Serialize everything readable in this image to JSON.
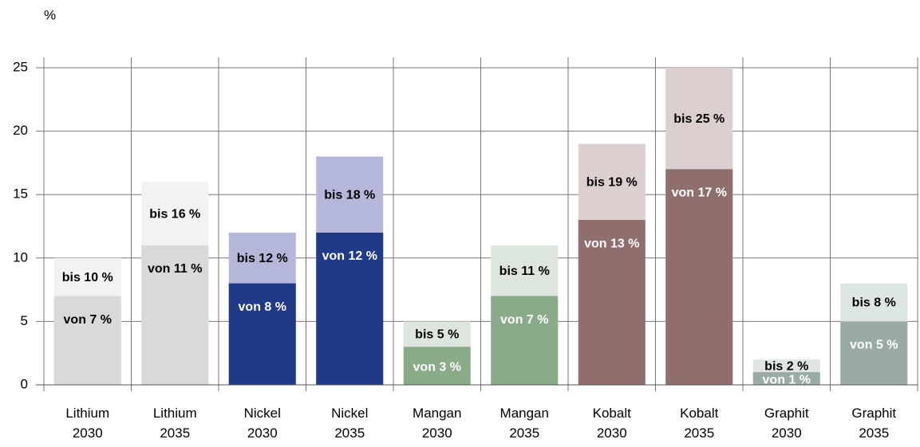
{
  "chart_data": {
    "type": "range_bar",
    "unit_label": "%",
    "categories": [
      "Lithium 2030",
      "Lithium 2035",
      "Nickel 2030",
      "Nickel 2035",
      "Mangan 2030",
      "Mangan 2035",
      "Kobalt 2030",
      "Kobalt 2035",
      "Graphit 2030",
      "Graphit 2035"
    ],
    "series": [
      {
        "name": "bis",
        "colors": [
          "#f2f2f2",
          "#f2f2f2",
          "#b4b6da",
          "#b4b6da",
          "#dce6dc",
          "#dce6dc",
          "#dccfcf",
          "#dccfcf",
          "#dde6e3",
          "#dde6e3"
        ],
        "values": [
          10,
          16,
          12,
          18,
          5,
          11,
          19,
          25,
          2,
          8
        ],
        "value_labels": [
          "bis 10 %",
          "bis 16 %",
          "bis 12 %",
          "bis 18 %",
          "bis 5 %",
          "bis 11 %",
          "bis 19 %",
          "bis 25 %",
          "bis 2 %",
          "bis 8 %"
        ]
      },
      {
        "name": "von",
        "colors": [
          "#d9d9d9",
          "#d9d9d9",
          "#213a87",
          "#213a87",
          "#8aab88",
          "#8aab88",
          "#8f6f6d",
          "#8f6f6d",
          "#99aaa7",
          "#99aaa7"
        ],
        "label_colors": [
          "#000",
          "#000",
          "#fff",
          "#fff",
          "#fff",
          "#fff",
          "#fff",
          "#fff",
          "#fff",
          "#fff"
        ],
        "values": [
          7,
          11,
          8,
          12,
          3,
          7,
          13,
          17,
          1,
          5
        ],
        "value_labels": [
          "von 7 %",
          "von 11 %",
          "von 8 %",
          "von 12 %",
          "von 3 %",
          "von 7 %",
          "von 13 %",
          "von 17 %",
          "von 1 %",
          "von 5 %"
        ]
      }
    ],
    "ylim": [
      0,
      25
    ],
    "yticks": [
      0,
      5,
      10,
      15,
      20,
      25
    ],
    "grid": true
  }
}
